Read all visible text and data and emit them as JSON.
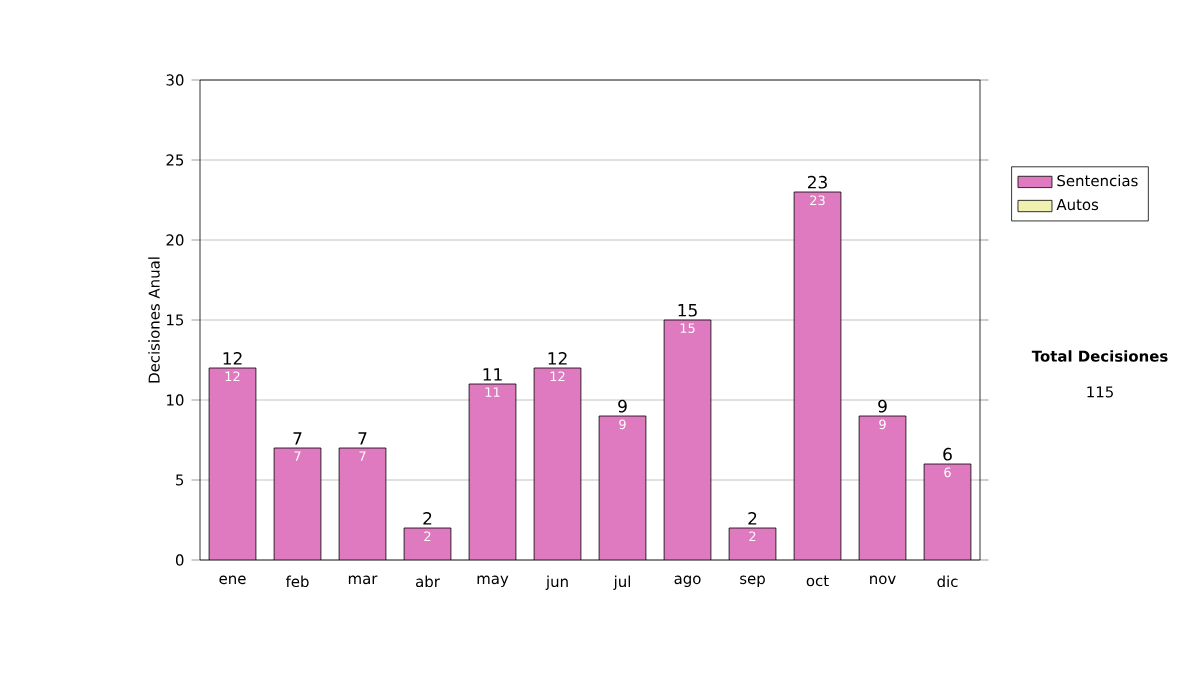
{
  "chart_data": {
    "type": "bar",
    "stacked": true,
    "ylabel": "Decisiones Anual",
    "categories": [
      "ene",
      "feb",
      "mar",
      "abr",
      "may",
      "jun",
      "jul",
      "ago",
      "sep",
      "oct",
      "nov",
      "dic"
    ],
    "series": [
      {
        "name": "Sentencias",
        "color": "#e07ac0",
        "values": [
          12,
          7,
          7,
          2,
          11,
          12,
          9,
          15,
          2,
          23,
          9,
          6
        ],
        "value_labels": [
          "12",
          "7",
          "7",
          "2",
          "11",
          "12",
          "9",
          "15",
          "2",
          "23",
          "9",
          "6"
        ]
      },
      {
        "name": "Autos",
        "color": "#f0f0b0",
        "values": [
          0,
          0,
          0,
          0,
          0,
          0,
          0,
          0,
          0,
          0,
          0,
          0
        ]
      }
    ],
    "totals": [
      "12",
      "7",
      "7",
      "2",
      "11",
      "12",
      "9",
      "15",
      "2",
      "23",
      "9",
      "6"
    ],
    "ylim": [
      0,
      30
    ],
    "yticks": [
      0,
      5,
      10,
      15,
      20,
      25,
      30
    ],
    "grid": "y",
    "legend": "right",
    "annotations": [
      "**Total Decisiones**",
      "115"
    ]
  }
}
